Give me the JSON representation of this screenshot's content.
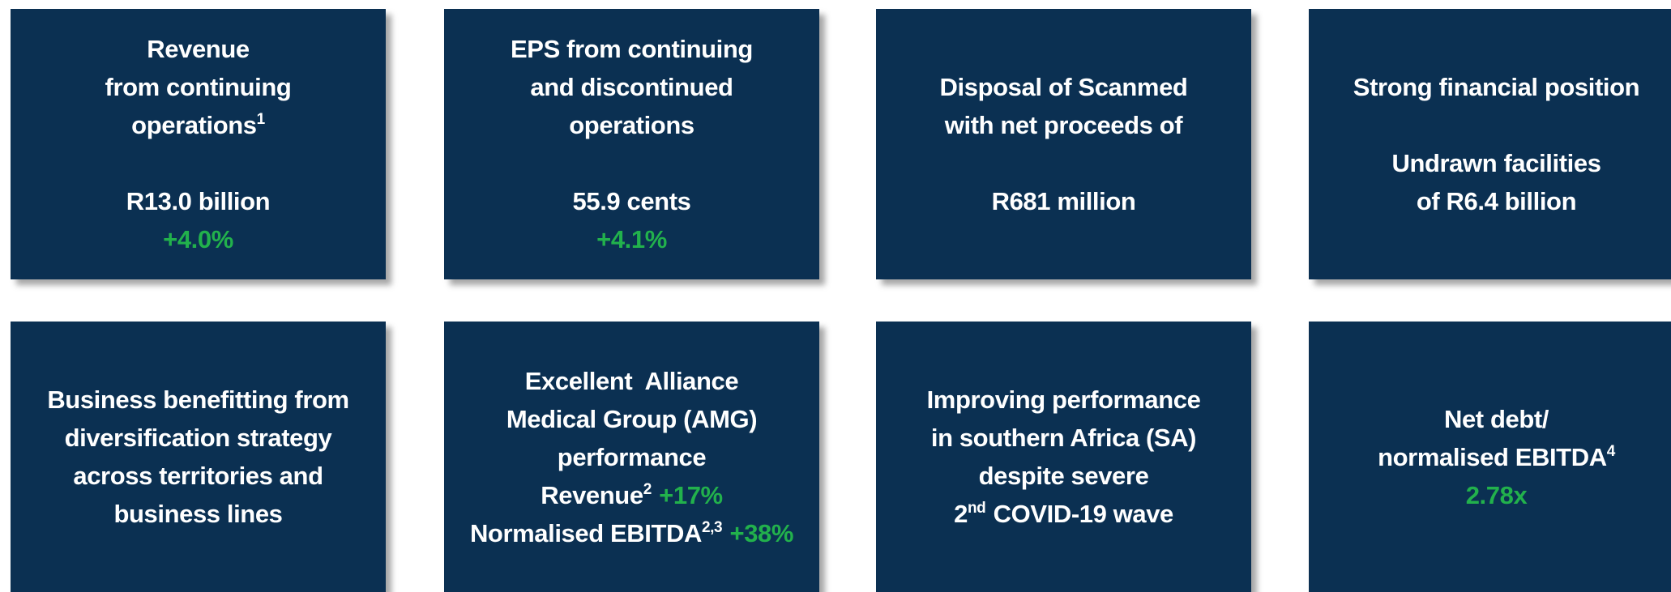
{
  "tiles": [
    {
      "blocks": [
        [
          [
            {
              "text": "Revenue"
            }
          ],
          [
            {
              "text": "from continuing"
            }
          ],
          [
            {
              "text": "operations"
            },
            {
              "sup": "1"
            }
          ]
        ],
        [
          [
            {
              "text": "R13.0 billion"
            }
          ],
          [
            {
              "highlight": "+4.0%"
            }
          ]
        ]
      ]
    },
    {
      "blocks": [
        [
          [
            {
              "text": "EPS from continuing"
            }
          ],
          [
            {
              "text": "and discontinued"
            }
          ],
          [
            {
              "text": "operations"
            }
          ]
        ],
        [
          [
            {
              "text": "55.9 cents"
            }
          ],
          [
            {
              "highlight": "+4.1%"
            }
          ]
        ]
      ]
    },
    {
      "blocks": [
        [
          [
            {
              "text": "Disposal of Scanmed"
            }
          ],
          [
            {
              "text": "with net proceeds of"
            }
          ]
        ],
        [
          [
            {
              "text": "R681 million"
            }
          ]
        ]
      ]
    },
    {
      "blocks": [
        [
          [
            {
              "text": "Strong financial position"
            }
          ]
        ],
        [
          [
            {
              "text": "Undrawn facilities"
            }
          ],
          [
            {
              "text": "of R6.4 billion"
            }
          ]
        ]
      ]
    },
    {
      "blocks": [
        [
          [
            {
              "text": "Business benefitting from"
            }
          ],
          [
            {
              "text": "diversification strategy"
            }
          ],
          [
            {
              "text": "across territories and"
            }
          ],
          [
            {
              "text": "business lines"
            }
          ]
        ]
      ]
    },
    {
      "blocks": [
        [
          [
            {
              "text": "Excellent  Alliance"
            }
          ],
          [
            {
              "text": "Medical Group (AMG)"
            }
          ],
          [
            {
              "text": "performance"
            }
          ],
          [
            {
              "text": "Revenue"
            },
            {
              "sup": "2"
            },
            {
              "highlight": "+17%"
            }
          ],
          [
            {
              "text": "Normalised EBITDA"
            },
            {
              "sup": "2,3"
            },
            {
              "highlight": "+38%"
            }
          ]
        ]
      ]
    },
    {
      "blocks": [
        [
          [
            {
              "text": "Improving performance"
            }
          ],
          [
            {
              "text": "in southern Africa (SA)"
            }
          ],
          [
            {
              "text": "despite severe"
            }
          ],
          [
            {
              "text": "2"
            },
            {
              "sup": "nd"
            },
            {
              "text": "COVID-19 wave"
            }
          ]
        ]
      ]
    },
    {
      "blocks": [
        [
          [
            {
              "text": "Net debt/"
            }
          ],
          [
            {
              "text": "normalised EBITDA"
            },
            {
              "sup": "4"
            }
          ],
          [
            {
              "highlight": "2.78x"
            }
          ]
        ]
      ]
    }
  ]
}
